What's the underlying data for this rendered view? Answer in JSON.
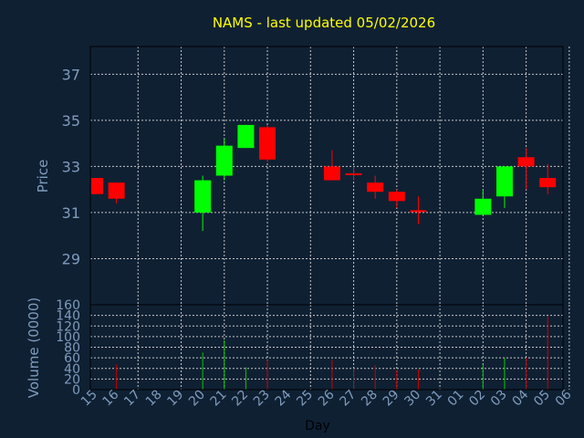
{
  "chart_data": {
    "type": "candlestick",
    "title": "NAMS - last updated 05/02/2026",
    "ylabel": "Price",
    "volume_label": "Volume (0000)",
    "xlabel": "Day",
    "ylim": [
      27,
      38.2
    ],
    "yticks": [
      29,
      31,
      33,
      35,
      37
    ],
    "volume_ylim": [
      0,
      160
    ],
    "volume_ticks": [
      0,
      20,
      40,
      60,
      80,
      100,
      120,
      140,
      160
    ],
    "x_labels": [
      "15",
      "16",
      "17",
      "18",
      "19",
      "20",
      "21",
      "22",
      "23",
      "24",
      "25",
      "26",
      "27",
      "28",
      "29",
      "30",
      "31",
      "01",
      "02",
      "03",
      "04",
      "05",
      "06"
    ],
    "grid": true,
    "colors": {
      "background": "#0f2033",
      "up": "#00ff00",
      "down": "#ff0000",
      "title": "#ffff00",
      "axis_text": "#7f9cbd",
      "grid": "#c8c8c8"
    },
    "candles": [
      {
        "x": 0,
        "open": 32.5,
        "close": 31.8,
        "high": 32.5,
        "low": 31.8,
        "volume": 0
      },
      {
        "x": 1,
        "open": 32.3,
        "close": 31.6,
        "high": 32.3,
        "low": 31.4,
        "volume": 47
      },
      {
        "x": 5,
        "open": 31.0,
        "close": 32.4,
        "high": 32.6,
        "low": 30.2,
        "volume": 70
      },
      {
        "x": 6,
        "open": 32.6,
        "close": 33.9,
        "high": 34.2,
        "low": 32.4,
        "volume": 93
      },
      {
        "x": 7,
        "open": 33.8,
        "close": 34.8,
        "high": 34.8,
        "low": 33.8,
        "volume": 42
      },
      {
        "x": 8,
        "open": 34.7,
        "close": 33.3,
        "high": 34.8,
        "low": 33.2,
        "volume": 56
      },
      {
        "x": 11,
        "open": 33.0,
        "close": 32.4,
        "high": 33.7,
        "low": 32.4,
        "volume": 56
      },
      {
        "x": 12,
        "open": 32.7,
        "close": 32.7,
        "high": 33.0,
        "low": 32.4,
        "volume": 40
      },
      {
        "x": 13,
        "open": 32.3,
        "close": 31.9,
        "high": 32.6,
        "low": 31.6,
        "volume": 46
      },
      {
        "x": 14,
        "open": 31.9,
        "close": 31.5,
        "high": 32.0,
        "low": 31.2,
        "volume": 37
      },
      {
        "x": 15,
        "open": 31.1,
        "close": 31.1,
        "high": 31.7,
        "low": 30.5,
        "volume": 38
      },
      {
        "x": 18,
        "open": 30.9,
        "close": 31.6,
        "high": 32.0,
        "low": 30.9,
        "volume": 47
      },
      {
        "x": 19,
        "open": 31.7,
        "close": 33.0,
        "high": 33.0,
        "low": 31.2,
        "volume": 60
      },
      {
        "x": 20,
        "open": 33.4,
        "close": 33.0,
        "high": 33.8,
        "low": 32.0,
        "volume": 60
      },
      {
        "x": 21,
        "open": 32.5,
        "close": 32.1,
        "high": 33.1,
        "low": 31.8,
        "volume": 138
      }
    ]
  }
}
